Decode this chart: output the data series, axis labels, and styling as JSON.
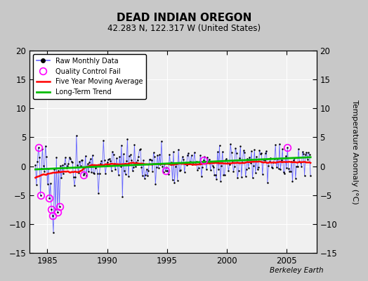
{
  "title": "DEAD INDIAN OREGON",
  "subtitle": "42.283 N, 122.317 W (United States)",
  "ylabel_right": "Temperature Anomaly (°C)",
  "credit": "Berkeley Earth",
  "xlim": [
    1983.5,
    2007.5
  ],
  "ylim": [
    -15,
    20
  ],
  "yticks": [
    -15,
    -10,
    -5,
    0,
    5,
    10,
    15,
    20
  ],
  "xticks": [
    1985,
    1990,
    1995,
    2000,
    2005
  ],
  "bg_color": "#c8c8c8",
  "plot_bg_color": "#f0f0f0",
  "grid_color": "#ffffff",
  "raw_line_color": "#6666ff",
  "raw_marker_color": "#000000",
  "ma_color": "#ff0000",
  "trend_color": "#00bb00",
  "qc_color": "#ff00ff",
  "seed": 17,
  "n_months": 276,
  "start_year": 1984.0,
  "trend_y0": -0.55,
  "trend_y1": 1.55,
  "ma_y0": -0.5,
  "ma_y1": 1.0
}
